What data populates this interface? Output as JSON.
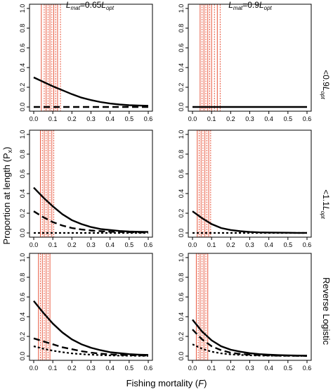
{
  "figure": {
    "y_label": "Proportion at length (P",
    "y_label_sub": "x",
    "y_label_close": ")",
    "x_label": "Fishing mortality (",
    "x_label_italic": "F",
    "x_label_close": ")",
    "column_titles": [
      {
        "l": "L",
        "sub": "mat",
        "eq": "=0.65",
        "l2": "L",
        "sub2": "opt"
      },
      {
        "l": "L",
        "sub": "mat",
        "eq": "=0.9",
        "l2": "L",
        "sub2": "opt"
      }
    ],
    "row_labels": [
      {
        "prefix": "<0.9",
        "l": "L",
        "sub": "opt"
      },
      {
        "prefix": "<1.1",
        "l": "L",
        "sub": "opt"
      },
      {
        "prefix": "Reverse Logistic",
        "l": "",
        "sub": ""
      }
    ],
    "colors": {
      "reference_lines": "#e8543a",
      "curves": "#000000"
    }
  },
  "chart_data": [
    {
      "type": "line",
      "row": 0,
      "col": 0,
      "xlim": [
        0,
        0.6
      ],
      "ylim": [
        0,
        1
      ],
      "xticks": [
        "0.0",
        "0.1",
        "0.2",
        "0.3",
        "0.4",
        "0.5",
        "0.6"
      ],
      "yticks": [
        "0.0",
        "0.2",
        "0.4",
        "0.6",
        "0.8",
        "1.0"
      ],
      "reference_lines": [
        0.04,
        0.055,
        0.065,
        0.075,
        0.085,
        0.095,
        0.105,
        0.115,
        0.125,
        0.14
      ],
      "series": [
        {
          "style": "solid",
          "x": [
            0,
            0.05,
            0.1,
            0.15,
            0.2,
            0.25,
            0.3,
            0.35,
            0.4,
            0.45,
            0.5,
            0.55,
            0.6
          ],
          "y": [
            0.3,
            0.255,
            0.21,
            0.17,
            0.13,
            0.095,
            0.07,
            0.05,
            0.035,
            0.025,
            0.018,
            0.015,
            0.012
          ]
        },
        {
          "style": "dashed",
          "x": [
            0,
            0.1,
            0.2,
            0.3,
            0.4,
            0.5,
            0.6
          ],
          "y": [
            0.0,
            0.0,
            0.0,
            0.0,
            0.0,
            0.0,
            0.0
          ]
        }
      ]
    },
    {
      "type": "line",
      "row": 0,
      "col": 1,
      "xlim": [
        0,
        0.6
      ],
      "ylim": [
        0,
        1
      ],
      "xticks": [
        "0.0",
        "0.1",
        "0.2",
        "0.3",
        "0.4",
        "0.5",
        "0.6"
      ],
      "yticks": [
        "0.0",
        "0.2",
        "0.4",
        "0.6",
        "0.8",
        "1.0"
      ],
      "reference_lines": [
        0.04,
        0.05,
        0.06,
        0.07,
        0.08,
        0.09,
        0.1,
        0.115,
        0.13,
        0.145
      ],
      "series": [
        {
          "style": "solid",
          "x": [
            0,
            0.1,
            0.2,
            0.3,
            0.4,
            0.5,
            0.6
          ],
          "y": [
            0.0,
            0.0,
            0.0,
            0.0,
            0.0,
            0.0,
            0.0
          ]
        }
      ]
    },
    {
      "type": "line",
      "row": 1,
      "col": 0,
      "xlim": [
        0,
        0.6
      ],
      "ylim": [
        0,
        1
      ],
      "xticks": [
        "0.0",
        "0.1",
        "0.2",
        "0.3",
        "0.4",
        "0.5",
        "0.6"
      ],
      "yticks": [
        "0.0",
        "0.2",
        "0.4",
        "0.6",
        "0.8",
        "1.0"
      ],
      "reference_lines": [
        0.035,
        0.045,
        0.055,
        0.065,
        0.075,
        0.085,
        0.095,
        0.105
      ],
      "series": [
        {
          "style": "solid",
          "x": [
            0,
            0.05,
            0.1,
            0.15,
            0.2,
            0.25,
            0.3,
            0.35,
            0.4,
            0.45,
            0.5,
            0.55,
            0.6
          ],
          "y": [
            0.46,
            0.36,
            0.27,
            0.19,
            0.13,
            0.09,
            0.06,
            0.04,
            0.03,
            0.02,
            0.015,
            0.012,
            0.01
          ]
        },
        {
          "style": "dashed",
          "x": [
            0,
            0.05,
            0.1,
            0.15,
            0.2,
            0.25,
            0.3,
            0.35,
            0.4,
            0.45,
            0.5,
            0.55,
            0.6
          ],
          "y": [
            0.22,
            0.16,
            0.11,
            0.075,
            0.05,
            0.035,
            0.025,
            0.018,
            0.012,
            0.01,
            0.008,
            0.006,
            0.005
          ]
        },
        {
          "style": "dotted",
          "x": [
            0,
            0.1,
            0.2,
            0.3,
            0.4,
            0.5,
            0.6
          ],
          "y": [
            0.0,
            0.0,
            0.0,
            0.0,
            0.0,
            0.0,
            0.0
          ]
        }
      ]
    },
    {
      "type": "line",
      "row": 1,
      "col": 1,
      "xlim": [
        0,
        0.6
      ],
      "ylim": [
        0,
        1
      ],
      "xticks": [
        "0.0",
        "0.1",
        "0.2",
        "0.3",
        "0.4",
        "0.5",
        "0.6"
      ],
      "yticks": [
        "0.0",
        "0.2",
        "0.4",
        "0.6",
        "0.8",
        "1.0"
      ],
      "reference_lines": [
        0.025,
        0.035,
        0.045,
        0.055,
        0.065,
        0.075,
        0.085,
        0.095
      ],
      "series": [
        {
          "style": "solid",
          "x": [
            0,
            0.05,
            0.1,
            0.15,
            0.2,
            0.25,
            0.3,
            0.35,
            0.4,
            0.45,
            0.5,
            0.55,
            0.6
          ],
          "y": [
            0.22,
            0.15,
            0.09,
            0.05,
            0.03,
            0.018,
            0.01,
            0.006,
            0.004,
            0.003,
            0.002,
            0.001,
            0.001
          ]
        },
        {
          "style": "dotted",
          "x": [
            0,
            0.1,
            0.2,
            0.3,
            0.4,
            0.5,
            0.6
          ],
          "y": [
            0.0,
            0.0,
            0.0,
            0.0,
            0.0,
            0.0,
            0.0
          ]
        }
      ]
    },
    {
      "type": "line",
      "row": 2,
      "col": 0,
      "xlim": [
        0,
        0.6
      ],
      "ylim": [
        0,
        1
      ],
      "xticks": [
        "0.0",
        "0.1",
        "0.2",
        "0.3",
        "0.4",
        "0.5",
        "0.6"
      ],
      "yticks": [
        "0.0",
        "0.2",
        "0.4",
        "0.6",
        "0.8",
        "1.0"
      ],
      "reference_lines": [
        0.025,
        0.035,
        0.045,
        0.055,
        0.065,
        0.075,
        0.085
      ],
      "series": [
        {
          "style": "solid",
          "x": [
            0,
            0.05,
            0.1,
            0.15,
            0.2,
            0.25,
            0.3,
            0.35,
            0.4,
            0.45,
            0.5,
            0.55,
            0.6
          ],
          "y": [
            0.56,
            0.44,
            0.33,
            0.24,
            0.17,
            0.12,
            0.085,
            0.06,
            0.04,
            0.03,
            0.02,
            0.015,
            0.012
          ]
        },
        {
          "style": "dashed",
          "x": [
            0,
            0.05,
            0.1,
            0.15,
            0.2,
            0.25,
            0.3,
            0.35,
            0.4,
            0.45,
            0.5,
            0.55,
            0.6
          ],
          "y": [
            0.18,
            0.15,
            0.12,
            0.09,
            0.07,
            0.05,
            0.035,
            0.025,
            0.018,
            0.013,
            0.01,
            0.008,
            0.006
          ]
        },
        {
          "style": "dotted",
          "x": [
            0,
            0.05,
            0.1,
            0.15,
            0.2,
            0.25,
            0.3,
            0.35,
            0.4,
            0.45,
            0.5,
            0.55,
            0.6
          ],
          "y": [
            0.1,
            0.075,
            0.055,
            0.04,
            0.028,
            0.02,
            0.014,
            0.01,
            0.007,
            0.005,
            0.004,
            0.003,
            0.002
          ]
        }
      ]
    },
    {
      "type": "line",
      "row": 2,
      "col": 1,
      "xlim": [
        0,
        0.6
      ],
      "ylim": [
        0,
        1
      ],
      "xticks": [
        "0.0",
        "0.1",
        "0.2",
        "0.3",
        "0.4",
        "0.5",
        "0.6"
      ],
      "yticks": [
        "0.0",
        "0.2",
        "0.4",
        "0.6",
        "0.8",
        "1.0"
      ],
      "reference_lines": [
        0.02,
        0.03,
        0.04,
        0.05,
        0.06,
        0.07,
        0.08
      ],
      "series": [
        {
          "style": "solid",
          "x": [
            0,
            0.05,
            0.1,
            0.15,
            0.2,
            0.25,
            0.3,
            0.35,
            0.4,
            0.45,
            0.5,
            0.55,
            0.6
          ],
          "y": [
            0.37,
            0.25,
            0.16,
            0.1,
            0.065,
            0.045,
            0.03,
            0.02,
            0.014,
            0.01,
            0.008,
            0.006,
            0.005
          ]
        },
        {
          "style": "dashed",
          "x": [
            0,
            0.05,
            0.1,
            0.15,
            0.2,
            0.25,
            0.3,
            0.35,
            0.4,
            0.45,
            0.5,
            0.55,
            0.6
          ],
          "y": [
            0.27,
            0.17,
            0.1,
            0.06,
            0.035,
            0.022,
            0.015,
            0.01,
            0.007,
            0.005,
            0.004,
            0.003,
            0.002
          ]
        },
        {
          "style": "dotted",
          "x": [
            0,
            0.05,
            0.1,
            0.15,
            0.2,
            0.25,
            0.3,
            0.35,
            0.4,
            0.45,
            0.5,
            0.55,
            0.6
          ],
          "y": [
            0.12,
            0.075,
            0.045,
            0.028,
            0.018,
            0.012,
            0.008,
            0.005,
            0.004,
            0.003,
            0.002,
            0.002,
            0.001
          ]
        }
      ]
    }
  ]
}
